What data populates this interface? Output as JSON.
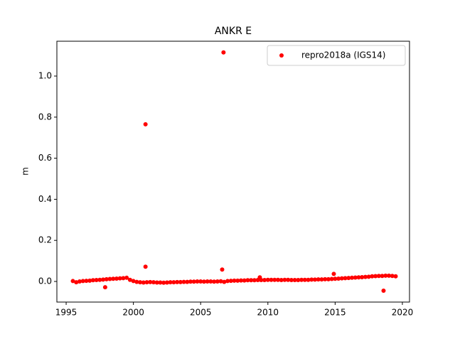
{
  "chart_data": {
    "type": "scatter",
    "title": "ANKR E",
    "y_label": "m",
    "xlim": [
      1994.31,
      2020.53
    ],
    "ylim": [
      -0.1003,
      1.1696
    ],
    "xticks": [
      1995,
      2000,
      2005,
      2010,
      2015,
      2020
    ],
    "yticks": [
      {
        "value": 0,
        "label": "0.0"
      },
      0.2,
      0.4,
      0.6,
      0.8,
      {
        "value": 1,
        "label": "1.0"
      }
    ],
    "legend": "upper right",
    "series": [
      {
        "name": "repro2018a (IGS14)",
        "color": "#ff0000",
        "x": [
          1995.5,
          1995.75,
          1996,
          1996.25,
          1996.5,
          1996.75,
          1997,
          1997.25,
          1997.5,
          1997.75,
          1998,
          1998.25,
          1998.5,
          1998.75,
          1999,
          1999.25,
          1999.5,
          1999.75,
          2000,
          2000.25,
          2000.5,
          2000.75,
          2001,
          2001.25,
          2001.5,
          2001.75,
          2002,
          2002.25,
          2002.5,
          2002.75,
          2003,
          2003.25,
          2003.5,
          2003.75,
          2004,
          2004.25,
          2004.5,
          2004.75,
          2005,
          2005.25,
          2005.5,
          2005.75,
          2006,
          2006.25,
          2006.5,
          2006.75,
          2007,
          2007.25,
          2007.5,
          2007.75,
          2008,
          2008.25,
          2008.5,
          2008.75,
          2009,
          2009.25,
          2009.5,
          2009.75,
          2010,
          2010.25,
          2010.5,
          2010.75,
          2011,
          2011.25,
          2011.5,
          2011.75,
          2012,
          2012.25,
          2012.5,
          2012.75,
          2013,
          2013.25,
          2013.5,
          2013.75,
          2014,
          2014.25,
          2014.5,
          2014.75,
          2015,
          2015.25,
          2015.5,
          2015.75,
          2016,
          2016.25,
          2016.5,
          2016.75,
          2017,
          2017.25,
          2017.5,
          2017.75,
          2018,
          2018.25,
          2018.5,
          2018.75,
          2019,
          2019.25,
          2019.5,
          1997.9,
          2000.9,
          2000.9,
          2006.7,
          2006.6,
          2009.4,
          2014.9,
          2018.6
        ],
        "values": [
          0.002,
          -0.004,
          0,
          0.002,
          0.003,
          0.004,
          0.006,
          0.007,
          0.008,
          0.009,
          0.011,
          0.012,
          0.013,
          0.014,
          0.015,
          0.016,
          0.018,
          0.008,
          0.002,
          -0.002,
          -0.004,
          -0.005,
          -0.004,
          -0.003,
          -0.004,
          -0.005,
          -0.005,
          -0.006,
          -0.005,
          -0.004,
          -0.004,
          -0.003,
          -0.003,
          -0.002,
          -0.002,
          -0.001,
          -0.001,
          0,
          0,
          -0.001,
          0,
          0,
          -0.001,
          0,
          0.001,
          -0.002,
          0.002,
          0.003,
          0.004,
          0.004,
          0.005,
          0.005,
          0.006,
          0.006,
          0.006,
          0.007,
          0.007,
          0.007,
          0.008,
          0.008,
          0.008,
          0.008,
          0.007,
          0.008,
          0.008,
          0.007,
          0.007,
          0.007,
          0.008,
          0.008,
          0.008,
          0.009,
          0.009,
          0.01,
          0.01,
          0.011,
          0.011,
          0.012,
          0.013,
          0.014,
          0.015,
          0.016,
          0.017,
          0.018,
          0.019,
          0.02,
          0.021,
          0.022,
          0.023,
          0.025,
          0.026,
          0.027,
          0.027,
          0.028,
          0.028,
          0.027,
          0.025,
          -0.028,
          0.765,
          0.072,
          1.115,
          0.058,
          0.02,
          0.037,
          -0.045
        ]
      }
    ]
  }
}
